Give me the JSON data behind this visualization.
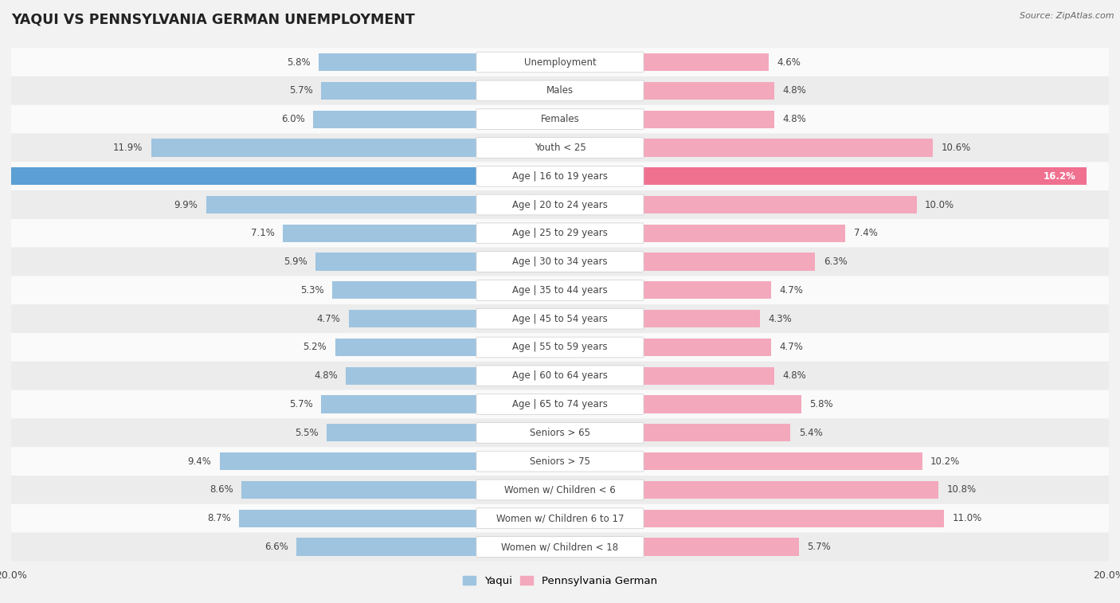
{
  "title": "YAQUI VS PENNSYLVANIA GERMAN UNEMPLOYMENT",
  "source": "Source: ZipAtlas.com",
  "categories": [
    "Unemployment",
    "Males",
    "Females",
    "Youth < 25",
    "Age | 16 to 19 years",
    "Age | 20 to 24 years",
    "Age | 25 to 29 years",
    "Age | 30 to 34 years",
    "Age | 35 to 44 years",
    "Age | 45 to 54 years",
    "Age | 55 to 59 years",
    "Age | 60 to 64 years",
    "Age | 65 to 74 years",
    "Seniors > 65",
    "Seniors > 75",
    "Women w/ Children < 6",
    "Women w/ Children 6 to 17",
    "Women w/ Children < 18"
  ],
  "yaqui": [
    5.8,
    5.7,
    6.0,
    11.9,
    19.0,
    9.9,
    7.1,
    5.9,
    5.3,
    4.7,
    5.2,
    4.8,
    5.7,
    5.5,
    9.4,
    8.6,
    8.7,
    6.6
  ],
  "penn_german": [
    4.6,
    4.8,
    4.8,
    10.6,
    16.2,
    10.0,
    7.4,
    6.3,
    4.7,
    4.3,
    4.7,
    4.8,
    5.8,
    5.4,
    10.2,
    10.8,
    11.0,
    5.7
  ],
  "yaqui_color": "#9ec4e0",
  "penn_german_color": "#f4a8bc",
  "yaqui_highlight_color": "#5b9fd4",
  "penn_german_highlight_color": "#f07090",
  "bar_height": 0.62,
  "xlim": 20.0,
  "background_color": "#f2f2f2",
  "row_colors": [
    "#fafafa",
    "#ececec"
  ],
  "label_fontsize": 8.5,
  "value_fontsize": 8.5,
  "title_fontsize": 12.5
}
